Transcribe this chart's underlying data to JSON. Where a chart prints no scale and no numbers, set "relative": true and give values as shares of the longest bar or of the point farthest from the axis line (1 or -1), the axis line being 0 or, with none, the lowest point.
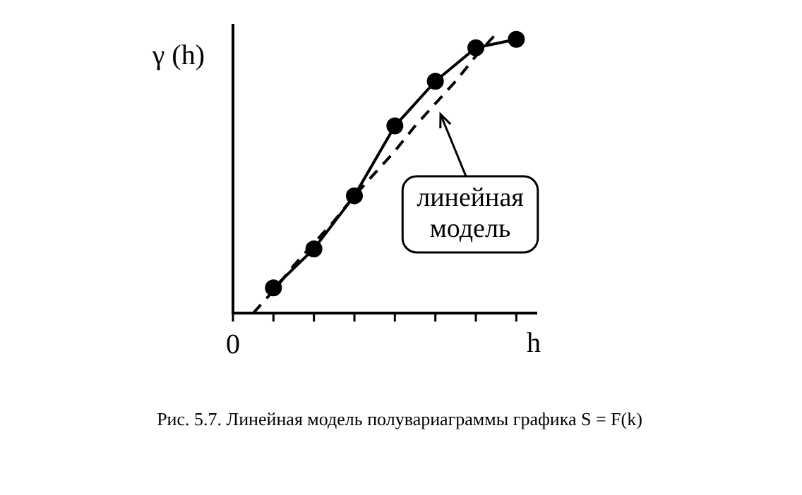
{
  "chart_data": {
    "type": "line",
    "relative": true,
    "xlabel": "h",
    "ylabel": "γ (h)",
    "grid": false,
    "legend": false,
    "categories": [
      null,
      null,
      null,
      null,
      null,
      null,
      null,
      null,
      null,
      null,
      null,
      null,
      null,
      null,
      null,
      null
    ],
    "series": [
      {
        "type": "line",
        "color": "#000000",
        "marker": "circle",
        "line_style": "solid",
        "values": [
          null,
          null,
          0.09,
          null,
          0.23,
          null,
          0.42,
          null,
          0.67,
          null,
          0.83,
          null,
          0.95,
          null,
          0.98,
          null
        ]
      },
      {
        "type": "line",
        "color": "#000000",
        "marker": "none",
        "line_style": "dashed",
        "values": [
          null,
          0,
          0.08,
          0.17,
          0.25,
          0.33,
          0.42,
          0.5,
          0.58,
          0.67,
          0.75,
          0.83,
          0.92,
          1,
          null,
          null
        ]
      }
    ],
    "annotations": [
      "0",
      "линейная модель",
      "Рис. 5.7. Линейная модель полувариаграммы графика S = F(k)"
    ]
  }
}
